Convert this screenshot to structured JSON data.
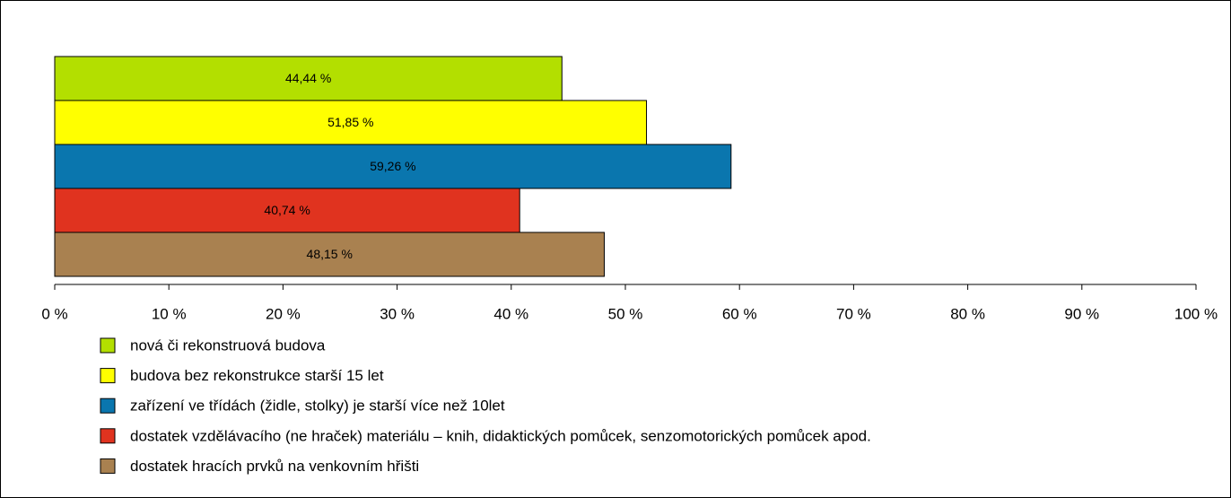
{
  "chart_data": {
    "type": "bar",
    "orientation": "horizontal",
    "series": [
      {
        "name": "nová či rekonstruová budova",
        "color": "#b3df00",
        "values": [
          44.44
        ],
        "value_labels": [
          "44,44 %"
        ]
      },
      {
        "name": "budova bez rekonstrukce starší 15 let",
        "color": "#ffff00",
        "values": [
          51.85
        ],
        "value_labels": [
          "51,85 %"
        ]
      },
      {
        "name": "zařízení ve třídách (židle, stolky) je starší více než 10let",
        "color": "#0a76ae",
        "values": [
          59.26
        ],
        "value_labels": [
          "59,26 %"
        ]
      },
      {
        "name": "dostatek vzdělávacího (ne hraček) materiálu – knih, didaktických pomůcek, senzomotorických pomůcek apod.",
        "color": "#e0331f",
        "values": [
          40.74
        ],
        "value_labels": [
          "40,74 %"
        ]
      },
      {
        "name": "dostatek hracích prvků na venkovním hřišti",
        "color": "#a98150",
        "values": [
          48.15
        ],
        "value_labels": [
          "48,15 %"
        ]
      }
    ],
    "xlim": [
      0,
      100
    ],
    "xticks": [
      {
        "value": 0,
        "label": "0 %"
      },
      {
        "value": 10,
        "label": "10 %"
      },
      {
        "value": 20,
        "label": "20 %"
      },
      {
        "value": 30,
        "label": "30 %"
      },
      {
        "value": 40,
        "label": "40 %"
      },
      {
        "value": 50,
        "label": "50 %"
      },
      {
        "value": 60,
        "label": "60 %"
      },
      {
        "value": 70,
        "label": "70 %"
      },
      {
        "value": 80,
        "label": "80 %"
      },
      {
        "value": 90,
        "label": "90 %"
      },
      {
        "value": 100,
        "label": "100 %"
      }
    ],
    "grid": false,
    "legend": "bottom"
  }
}
